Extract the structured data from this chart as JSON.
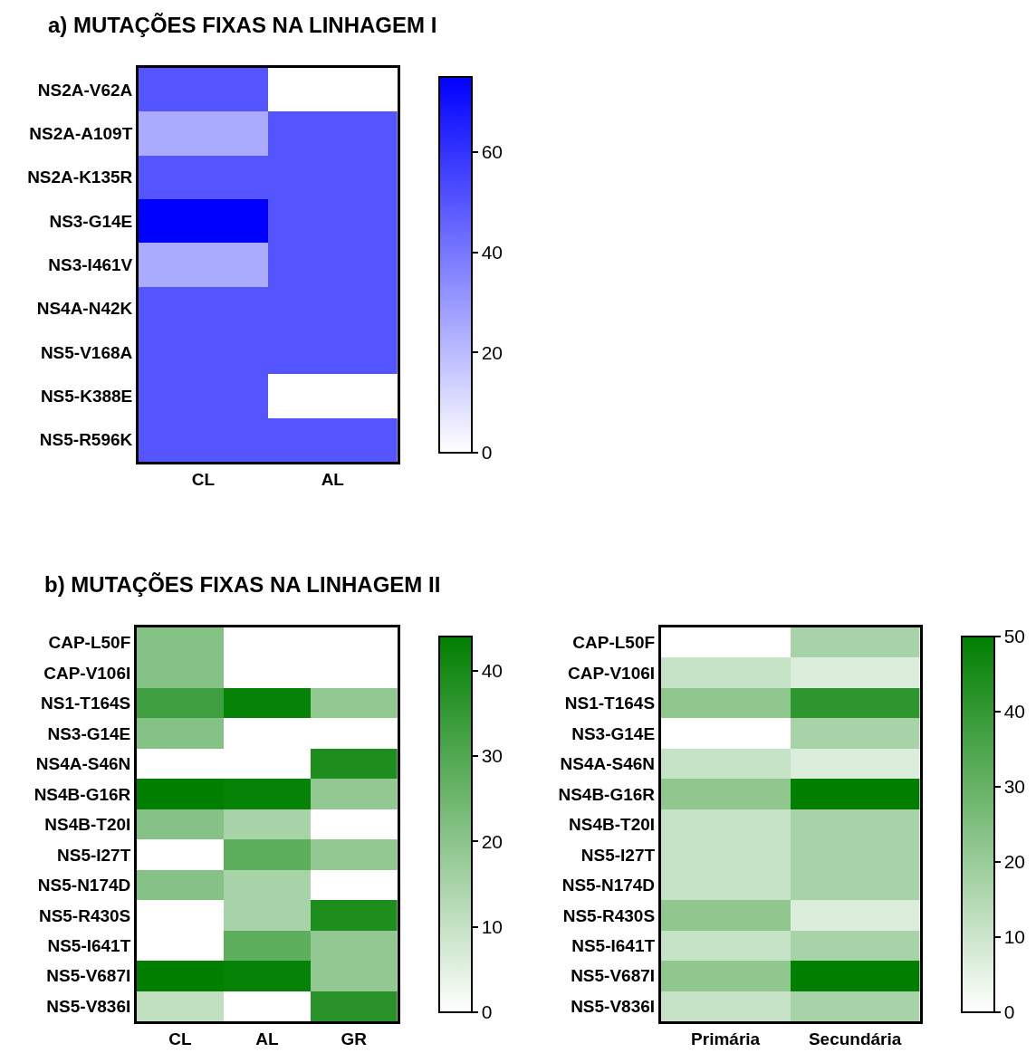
{
  "chart_data": [
    {
      "type": "heatmap",
      "title": "a) MUTAÇÕES FIXAS NA LINHAGEM I",
      "categories": [
        "CL",
        "AL"
      ],
      "y_categories": [
        "NS2A-V62A",
        "NS2A-A109T",
        "NS2A-K135R",
        "NS3-G14E",
        "NS3-I461V",
        "NS4A-N42K",
        "NS5-V168A",
        "NS5-K388E",
        "NS5-R596K"
      ],
      "cells": [
        [
          50,
          0
        ],
        [
          25,
          50
        ],
        [
          50,
          50
        ],
        [
          75,
          50
        ],
        [
          25,
          50
        ],
        [
          50,
          50
        ],
        [
          50,
          50
        ],
        [
          50,
          0
        ],
        [
          50,
          50
        ]
      ],
      "colors": [
        "#ffffff",
        "#0000ff"
      ],
      "clim": [
        0,
        75
      ],
      "cticks": [
        0,
        20,
        40,
        60
      ]
    },
    {
      "type": "heatmap",
      "title": "b) MUTAÇÕES FIXAS NA LINHAGEM II",
      "categories": [
        "CL",
        "AL",
        "GR"
      ],
      "y_categories": [
        "CAP-L50F",
        "CAP-V106I",
        "NS1-T164S",
        "NS3-G14E",
        "NS4A-S46N",
        "NS4B-G16R",
        "NS4B-T20I",
        "NS5-I27T",
        "NS5-N174D",
        "NS5-R430S",
        "NS5-I641T",
        "NS5-V687I",
        "NS5-V836I"
      ],
      "cells": [
        [
          21,
          0,
          0
        ],
        [
          21,
          0,
          0
        ],
        [
          33,
          43,
          19
        ],
        [
          21,
          0,
          0
        ],
        [
          0,
          0,
          39
        ],
        [
          44,
          43,
          19
        ],
        [
          21,
          15,
          0
        ],
        [
          0,
          28,
          19
        ],
        [
          21,
          15,
          0
        ],
        [
          0,
          15,
          39
        ],
        [
          0,
          28,
          19
        ],
        [
          44,
          43,
          19
        ],
        [
          11,
          0,
          37
        ]
      ],
      "colors": [
        "#ffffff",
        "#007f00"
      ],
      "clim": [
        0,
        44
      ],
      "cticks": [
        0,
        10,
        20,
        30,
        40
      ]
    },
    {
      "type": "heatmap",
      "categories": [
        "Primária",
        "Secundária"
      ],
      "y_categories": [
        "CAP-L50F",
        "CAP-V106I",
        "NS1-T164S",
        "NS3-G14E",
        "NS4A-S46N",
        "NS4B-G16R",
        "NS4B-T20I",
        "NS5-I27T",
        "NS5-N174D",
        "NS5-R430S",
        "NS5-I641T",
        "NS5-V687I",
        "NS5-V836I"
      ],
      "cells": [
        [
          0,
          17
        ],
        [
          11,
          7
        ],
        [
          22,
          41
        ],
        [
          0,
          17
        ],
        [
          11,
          7
        ],
        [
          22,
          50
        ],
        [
          11,
          17
        ],
        [
          11,
          17
        ],
        [
          11,
          17
        ],
        [
          22,
          7
        ],
        [
          11,
          17
        ],
        [
          22,
          50
        ],
        [
          11,
          17
        ]
      ],
      "colors": [
        "#ffffff",
        "#007f00"
      ],
      "clim": [
        0,
        50
      ],
      "cticks": [
        0,
        10,
        20,
        30,
        40,
        50
      ]
    }
  ]
}
